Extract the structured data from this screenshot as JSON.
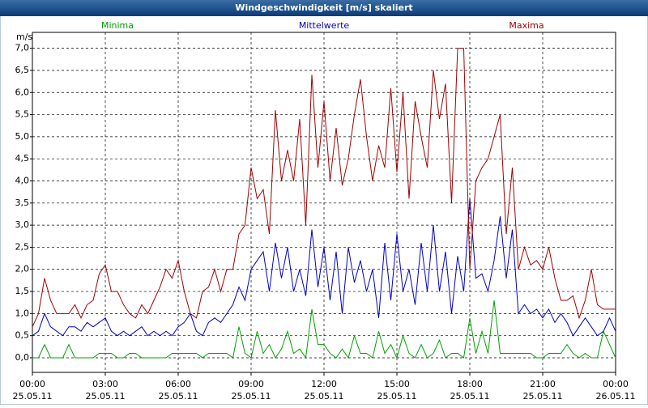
{
  "chart_data": {
    "type": "line",
    "title": "Windgeschwindigkeit [m/s] skaliert",
    "y_unit": "m/s",
    "x": [
      0,
      0.25,
      0.5,
      0.75,
      1,
      1.25,
      1.5,
      1.75,
      2,
      2.25,
      2.5,
      2.75,
      3,
      3.25,
      3.5,
      3.75,
      4,
      4.25,
      4.5,
      4.75,
      5,
      5.25,
      5.5,
      5.75,
      6,
      6.25,
      6.5,
      6.75,
      7,
      7.25,
      7.5,
      7.75,
      8,
      8.25,
      8.5,
      8.75,
      9,
      9.25,
      9.5,
      9.75,
      10,
      10.25,
      10.5,
      10.75,
      11,
      11.25,
      11.5,
      11.75,
      12,
      12.25,
      12.5,
      12.75,
      13,
      13.25,
      13.5,
      13.75,
      14,
      14.25,
      14.5,
      14.75,
      15,
      15.25,
      15.5,
      15.75,
      16,
      16.25,
      16.5,
      16.75,
      17,
      17.25,
      17.5,
      17.75,
      18,
      18.25,
      18.5,
      18.75,
      19,
      19.25,
      19.5,
      19.75,
      20,
      20.25,
      20.5,
      20.75,
      21,
      21.25,
      21.5,
      21.75,
      22,
      22.25,
      22.5,
      22.75,
      23,
      23.25,
      23.5,
      23.75,
      24
    ],
    "series": [
      {
        "name": "Minima",
        "color": "#00a000",
        "values": [
          0.0,
          0.0,
          0.3,
          0.0,
          0.0,
          0.0,
          0.3,
          0.0,
          0.0,
          0.0,
          0.0,
          0.1,
          0.1,
          0.1,
          0.0,
          0.0,
          0.1,
          0.1,
          0.0,
          0.0,
          0.0,
          0.0,
          0.0,
          0.1,
          0.1,
          0.1,
          0.1,
          0.1,
          0.0,
          0.1,
          0.1,
          0.1,
          0.1,
          0.0,
          0.7,
          0.1,
          0.0,
          0.6,
          0.1,
          0.3,
          0.0,
          0.2,
          0.6,
          0.1,
          0.2,
          0.0,
          1.1,
          0.3,
          0.3,
          0.1,
          0.0,
          0.2,
          0.0,
          0.5,
          0.1,
          0.1,
          0.0,
          0.6,
          0.1,
          0.3,
          0.0,
          0.5,
          0.1,
          0.0,
          0.3,
          0.0,
          0.1,
          0.4,
          0.0,
          0.1,
          0.1,
          0.0,
          0.9,
          0.1,
          0.6,
          0.1,
          1.3,
          0.1,
          0.1,
          0.1,
          0.1,
          0.1,
          0.1,
          0.0,
          0.0,
          0.1,
          0.1,
          0.1,
          0.3,
          0.1,
          0.0,
          0.1,
          0.0,
          0.0,
          0.6,
          0.3,
          0.0
        ]
      },
      {
        "name": "Mittelwerte",
        "color": "#0000c0",
        "values": [
          0.5,
          0.6,
          1.0,
          0.7,
          0.6,
          0.5,
          0.7,
          0.7,
          0.6,
          0.8,
          0.7,
          0.8,
          0.9,
          0.6,
          0.5,
          0.6,
          0.5,
          0.6,
          0.7,
          0.5,
          0.6,
          0.5,
          0.6,
          0.5,
          0.7,
          0.8,
          1.0,
          0.6,
          0.5,
          0.8,
          0.9,
          0.8,
          1.0,
          1.2,
          1.6,
          1.3,
          2.0,
          2.2,
          2.4,
          1.5,
          2.6,
          1.8,
          2.5,
          1.5,
          2.0,
          1.4,
          2.9,
          1.6,
          2.5,
          1.3,
          2.4,
          1.0,
          2.5,
          1.7,
          2.2,
          1.5,
          2.0,
          0.9,
          2.6,
          1.3,
          2.8,
          1.5,
          2.0,
          1.2,
          2.6,
          1.5,
          3.0,
          1.5,
          2.4,
          1.0,
          2.3,
          1.5,
          3.6,
          1.8,
          1.9,
          1.5,
          2.2,
          3.2,
          1.8,
          2.9,
          1.0,
          1.2,
          1.0,
          1.1,
          0.9,
          1.1,
          0.8,
          1.0,
          0.8,
          0.5,
          0.7,
          0.9,
          0.7,
          0.5,
          0.6,
          0.9,
          0.6
        ]
      },
      {
        "name": "Maxima",
        "color": "#a00000",
        "values": [
          0.7,
          1.0,
          1.8,
          1.3,
          1.0,
          1.0,
          1.0,
          1.2,
          0.9,
          1.2,
          1.3,
          1.9,
          2.1,
          1.5,
          1.5,
          1.2,
          1.0,
          0.9,
          1.2,
          1.0,
          1.3,
          1.6,
          2.0,
          1.8,
          2.2,
          1.5,
          1.0,
          0.9,
          1.5,
          1.6,
          2.0,
          1.5,
          2.0,
          2.0,
          2.8,
          3.0,
          4.3,
          3.6,
          3.8,
          2.8,
          5.6,
          4.0,
          4.7,
          4.0,
          5.4,
          3.0,
          6.4,
          4.3,
          5.8,
          4.0,
          5.2,
          3.9,
          4.5,
          5.5,
          6.3,
          5.0,
          4.0,
          4.8,
          4.3,
          6.1,
          4.2,
          6.0,
          3.6,
          5.8,
          5.0,
          4.3,
          6.5,
          5.4,
          6.2,
          3.5,
          7.0,
          7.0,
          2.0,
          4.0,
          4.3,
          4.5,
          5.0,
          5.5,
          2.8,
          4.3,
          2.0,
          2.5,
          2.1,
          2.2,
          2.0,
          2.5,
          1.8,
          1.3,
          1.3,
          1.4,
          0.9,
          1.3,
          2.0,
          1.2,
          1.1,
          1.1,
          1.1
        ]
      }
    ],
    "xlim": [
      0,
      24
    ],
    "xticks": [
      {
        "value": 0,
        "label": "00:00",
        "date": "25.05.11"
      },
      {
        "value": 3,
        "label": "03:00",
        "date": "25.05.11"
      },
      {
        "value": 6,
        "label": "06:00",
        "date": "25.05.11"
      },
      {
        "value": 9,
        "label": "09:00",
        "date": "25.05.11"
      },
      {
        "value": 12,
        "label": "12:00",
        "date": "25.05.11"
      },
      {
        "value": 15,
        "label": "15:00",
        "date": "25.05.11"
      },
      {
        "value": 18,
        "label": "18:00",
        "date": "25.05.11"
      },
      {
        "value": 21,
        "label": "21:00",
        "date": "25.05.11"
      },
      {
        "value": 24,
        "label": "00:00",
        "date": "26.05.11"
      }
    ],
    "ylim": [
      -0.33,
      7.36
    ],
    "yticks": [
      {
        "value": 0,
        "label": "0,0"
      },
      {
        "value": 0.5,
        "label": "0,5"
      },
      {
        "value": 1,
        "label": "1,0"
      },
      {
        "value": 1.5,
        "label": "1,5"
      },
      {
        "value": 2,
        "label": "2,0"
      },
      {
        "value": 2.5,
        "label": "2,5"
      },
      {
        "value": 3,
        "label": "3,0"
      },
      {
        "value": 3.5,
        "label": "3,5"
      },
      {
        "value": 4,
        "label": "4,0"
      },
      {
        "value": 4.5,
        "label": "4,5"
      },
      {
        "value": 5,
        "label": "5,0"
      },
      {
        "value": 5.5,
        "label": "5,5"
      },
      {
        "value": 6,
        "label": "6,0"
      },
      {
        "value": 6.5,
        "label": "6,5"
      },
      {
        "value": 7,
        "label": "7,0"
      }
    ],
    "grid": true
  }
}
